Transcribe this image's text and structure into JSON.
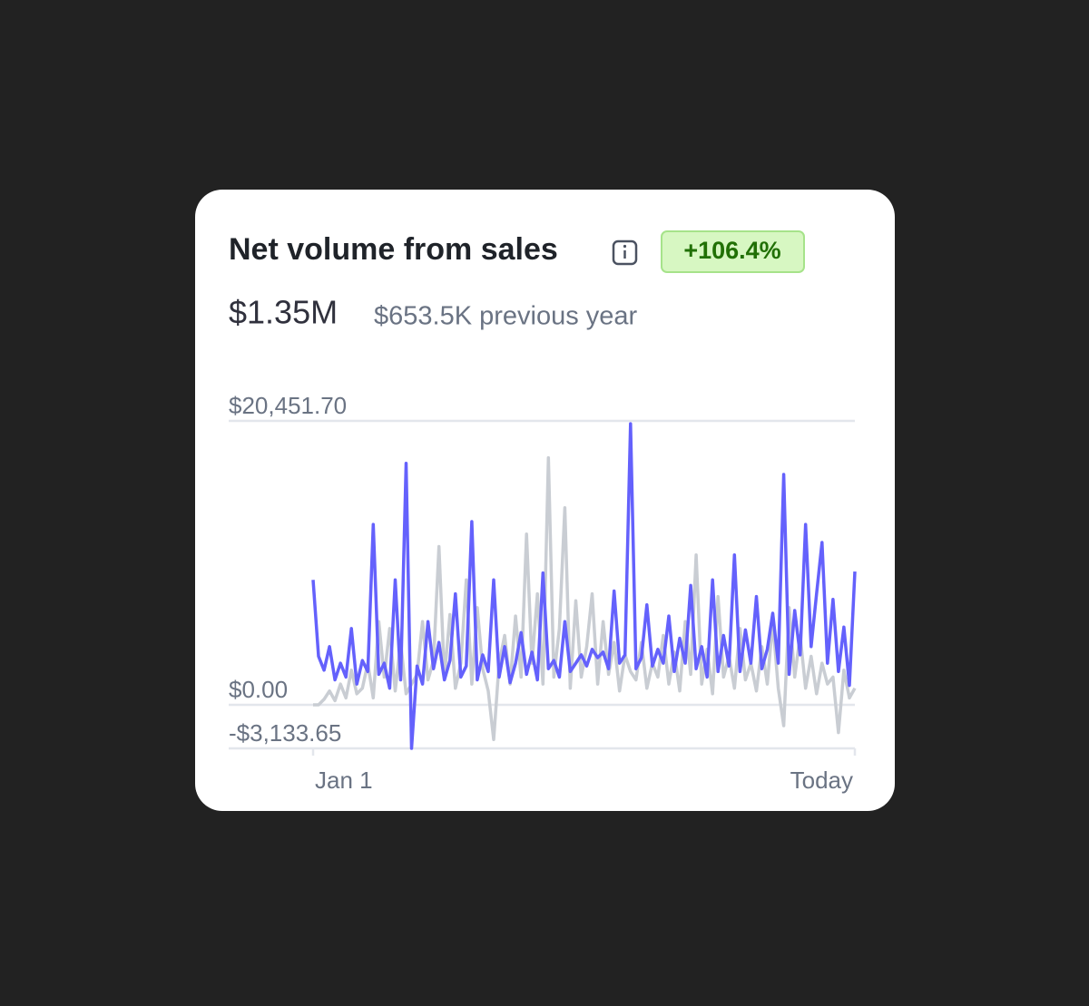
{
  "chart_data": {
    "type": "line",
    "title": "Net volume from sales",
    "change_badge": "+106.4%",
    "total": "$1.35M",
    "previous": "$653.5K previous year",
    "categories": [
      "Jan 1",
      null,
      null,
      null,
      null,
      null,
      null,
      null,
      null,
      null,
      null,
      null,
      null,
      null,
      null,
      null,
      null,
      null,
      null,
      null,
      null,
      null,
      null,
      null,
      null,
      null,
      null,
      null,
      null,
      null,
      null,
      null,
      null,
      null,
      null,
      null,
      null,
      null,
      null,
      null,
      null,
      null,
      null,
      null,
      null,
      null,
      null,
      null,
      null,
      null,
      null,
      null,
      null,
      null,
      null,
      null,
      null,
      null,
      null,
      null,
      null,
      null,
      null,
      null,
      null,
      null,
      null,
      null,
      null,
      null,
      null,
      null,
      null,
      null,
      null,
      null,
      null,
      null,
      null,
      null,
      null,
      null,
      null,
      null,
      null,
      null,
      null,
      null,
      null,
      null,
      null,
      null,
      null,
      null,
      null,
      null,
      null,
      null,
      null,
      "Today"
    ],
    "series": [
      {
        "color": "#c9cdd3",
        "values": [
          0,
          0,
          400,
          1000,
          300,
          1500,
          500,
          2500,
          800,
          1200,
          3000,
          500,
          6000,
          2000,
          5500,
          1000,
          4500,
          800,
          1500,
          2200,
          6000,
          1800,
          3200,
          11400,
          2000,
          6500,
          1200,
          3000,
          9000,
          1500,
          7000,
          2600,
          1000,
          -2500,
          3000,
          5000,
          1500,
          6400,
          2000,
          12300,
          3000,
          8000,
          1500,
          17800,
          2000,
          5500,
          14200,
          1200,
          7500,
          2000,
          4200,
          8000,
          1500,
          6000,
          2200,
          4500,
          1000,
          3600,
          2400,
          1800,
          4500,
          1200,
          3000,
          2000,
          5000,
          1500,
          3800,
          1000,
          6000,
          2200,
          10800,
          1500,
          4000,
          800,
          7800,
          2000,
          3500,
          1200,
          5500,
          1800,
          3000,
          1000,
          4200,
          1500,
          6000,
          1200,
          -1500,
          7000,
          2000,
          5000,
          1200,
          3500,
          800,
          3000,
          1500,
          2000,
          -2000,
          2500,
          500,
          1200
        ]
      },
      {
        "color": "#6461fc",
        "values": [
          9000,
          3500,
          2500,
          4200,
          1800,
          3000,
          2000,
          5500,
          1500,
          3200,
          2400,
          13000,
          2200,
          3000,
          1200,
          9000,
          1800,
          17400,
          -3133.65,
          2800,
          1500,
          6000,
          2600,
          4500,
          1800,
          3200,
          8000,
          2000,
          2800,
          13200,
          1800,
          3600,
          2400,
          9000,
          2000,
          4200,
          1600,
          3000,
          5200,
          2200,
          3800,
          1800,
          9500,
          2600,
          3200,
          2000,
          6000,
          2400,
          3000,
          3600,
          2800,
          4000,
          3400,
          3800,
          2600,
          8200,
          3000,
          3600,
          20250,
          2600,
          3400,
          7200,
          2800,
          4000,
          3000,
          6400,
          2400,
          4800,
          3000,
          8600,
          2600,
          4200,
          2000,
          9000,
          2400,
          5000,
          2800,
          10800,
          2400,
          5400,
          3000,
          7800,
          2600,
          4000,
          6600,
          3000,
          16600,
          2200,
          6800,
          3600,
          13000,
          4200,
          8000,
          11700,
          3000,
          7600,
          2400,
          5600,
          1400,
          9600
        ]
      }
    ],
    "ylim": [
      -3133.65,
      20451.7
    ],
    "yticks": [
      {
        "value": 20451.7,
        "label": "$20,451.70"
      },
      {
        "value": 0,
        "label": "$0.00"
      },
      {
        "value": -3133.65,
        "label": "-$3,133.65"
      }
    ],
    "grid": true
  }
}
